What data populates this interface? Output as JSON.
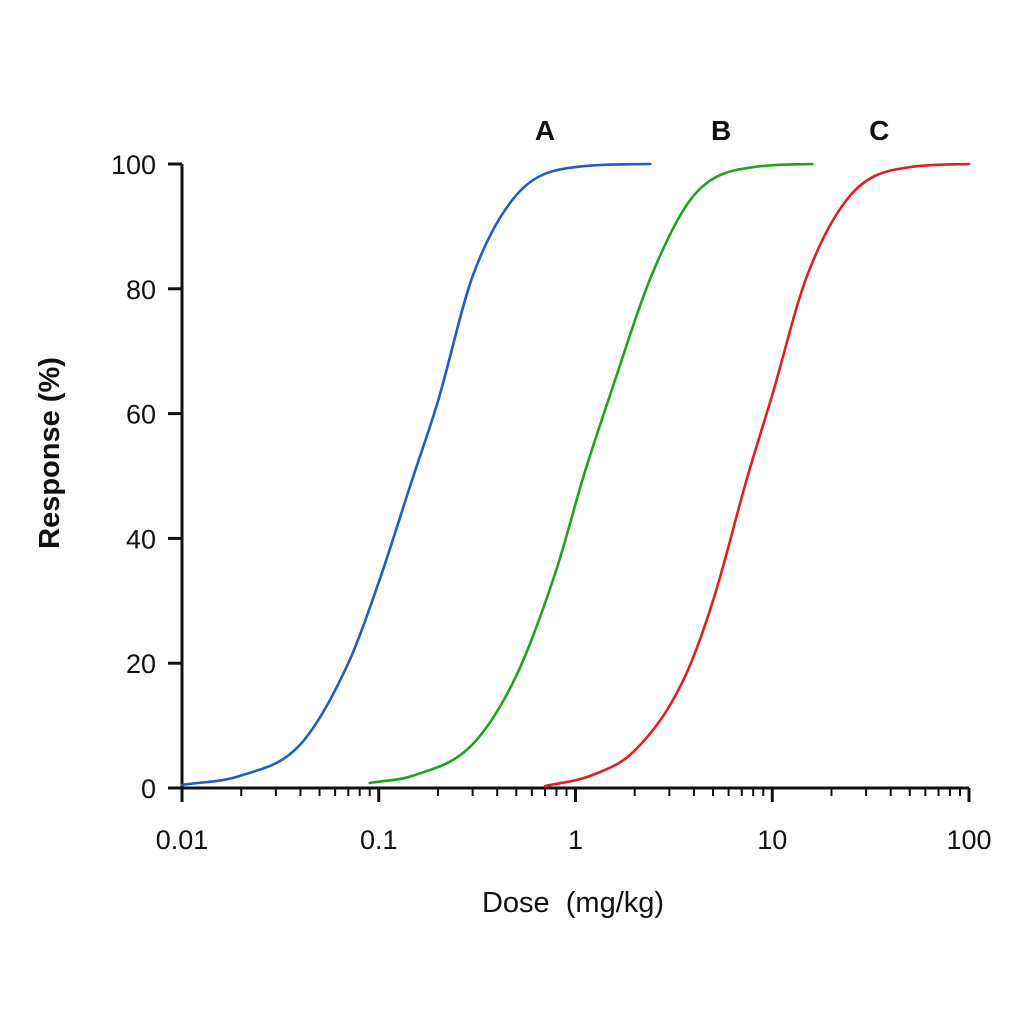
{
  "chart_data": {
    "type": "line",
    "title": "",
    "xlabel": "Dose  (mg/kg)",
    "ylabel": "Response (%)",
    "x_scale": "log",
    "xlim": [
      0.01,
      100
    ],
    "ylim": [
      0,
      100
    ],
    "x_ticks": [
      0.01,
      0.1,
      1,
      10,
      100
    ],
    "x_tick_labels": [
      "0.01",
      "0.1",
      "1",
      "10",
      "100"
    ],
    "y_ticks": [
      0,
      20,
      40,
      60,
      80,
      100
    ],
    "y_tick_labels": [
      "0",
      "20",
      "40",
      "60",
      "80",
      "100"
    ],
    "grid": false,
    "legend": "none",
    "series": [
      {
        "name": "A",
        "color": "#1f5fbf",
        "points": [
          [
            0.01,
            0.5
          ],
          [
            0.02,
            2
          ],
          [
            0.04,
            7
          ],
          [
            0.07,
            20
          ],
          [
            0.1,
            33
          ],
          [
            0.15,
            50
          ],
          [
            0.2,
            62
          ],
          [
            0.3,
            82
          ],
          [
            0.5,
            95
          ],
          [
            1,
            99.5
          ],
          [
            2.4,
            100
          ]
        ]
      },
      {
        "name": "B",
        "color": "#1fa31f",
        "points": [
          [
            0.09,
            0.8
          ],
          [
            0.15,
            2
          ],
          [
            0.3,
            7
          ],
          [
            0.5,
            18
          ],
          [
            0.8,
            35
          ],
          [
            1.1,
            50
          ],
          [
            1.5,
            63
          ],
          [
            2.5,
            83
          ],
          [
            4,
            95
          ],
          [
            8,
            99.5
          ],
          [
            16,
            100
          ]
        ]
      },
      {
        "name": "C",
        "color": "#e02020",
        "points": [
          [
            0.7,
            0.3
          ],
          [
            1.2,
            2
          ],
          [
            2,
            6
          ],
          [
            3.5,
            17
          ],
          [
            5,
            30
          ],
          [
            7.5,
            50
          ],
          [
            10,
            63
          ],
          [
            15,
            82
          ],
          [
            25,
            95
          ],
          [
            50,
            99.5
          ],
          [
            100,
            100
          ]
        ]
      }
    ]
  }
}
